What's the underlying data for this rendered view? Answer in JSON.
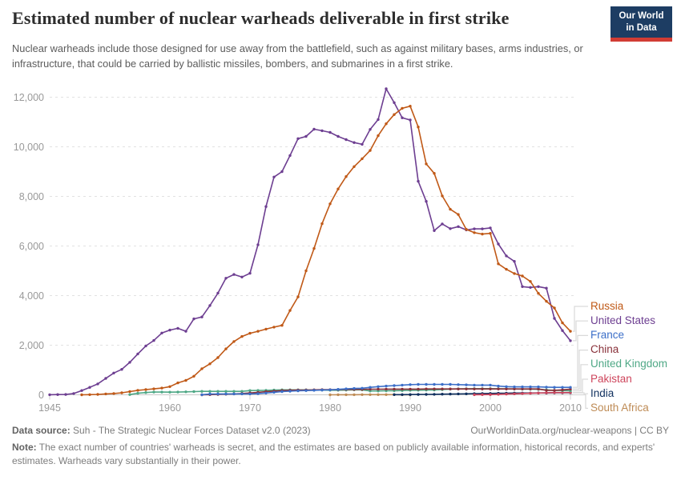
{
  "header": {
    "title": "Estimated number of nuclear warheads deliverable in first strike",
    "subtitle": "Nuclear warheads include those designed for use away from the battlefield, such as against military bases, arms industries, or infrastructure, that could be carried by ballistic missiles, bombers, and submarines in a first strike.",
    "logo_line1": "Our World",
    "logo_line2": "in Data",
    "logo_bg": "#1D3D63",
    "logo_stripe": "#D13C34"
  },
  "chart_data": {
    "type": "line",
    "title": "Estimated number of nuclear warheads deliverable in first strike",
    "xlabel": "",
    "ylabel": "",
    "x_range": [
      1945,
      2010
    ],
    "ylim": [
      0,
      12000
    ],
    "grid": "dashed-horizontal",
    "legend_position": "right",
    "xticks": [
      1945,
      1960,
      1970,
      1980,
      1990,
      2000,
      2010
    ],
    "yticks": [
      0,
      2000,
      4000,
      6000,
      8000,
      10000,
      12000
    ],
    "series": [
      {
        "name": "Russia",
        "color": "#C05917",
        "start_year": 1949,
        "values": [
          1,
          5,
          15,
          35,
          50,
          80,
          130,
          180,
          210,
          240,
          270,
          330,
          480,
          580,
          750,
          1050,
          1250,
          1500,
          1850,
          2150,
          2350,
          2480,
          2560,
          2650,
          2730,
          2800,
          3400,
          3950,
          5000,
          5900,
          6900,
          7700,
          8300,
          8800,
          9200,
          9520,
          9850,
          10450,
          10930,
          11300,
          11550,
          11640,
          10800,
          9310,
          8930,
          8020,
          7480,
          7270,
          6670,
          6540,
          6480,
          6510,
          5280,
          5060,
          4890,
          4790,
          4570,
          4090,
          3770,
          3500,
          2900,
          2560
        ]
      },
      {
        "name": "United States",
        "color": "#6D3E91",
        "start_year": 1945,
        "values": [
          2,
          9,
          13,
          50,
          170,
          299,
          438,
          660,
          878,
          1025,
          1310,
          1650,
          1970,
          2190,
          2490,
          2610,
          2680,
          2560,
          3060,
          3140,
          3600,
          4100,
          4700,
          4850,
          4750,
          4900,
          6050,
          7590,
          8780,
          9000,
          9650,
          10330,
          10420,
          10710,
          10650,
          10580,
          10420,
          10290,
          10170,
          10100,
          10700,
          11100,
          12340,
          11780,
          11170,
          11080,
          8610,
          7800,
          6620,
          6890,
          6700,
          6780,
          6650,
          6690,
          6690,
          6730,
          6080,
          5600,
          5380,
          4360,
          4330,
          4360,
          4300,
          3080,
          2590,
          2180
        ]
      },
      {
        "name": "France",
        "color": "#3C6FC8",
        "start_year": 1964,
        "values": [
          4,
          32,
          36,
          36,
          36,
          36,
          36,
          45,
          70,
          100,
          130,
          145,
          160,
          170,
          180,
          190,
          200,
          220,
          240,
          255,
          265,
          300,
          330,
          350,
          370,
          390,
          410,
          420,
          420,
          420,
          420,
          420,
          410,
          400,
          390,
          390,
          390,
          350,
          330,
          320,
          320,
          320,
          320,
          310,
          300,
          300,
          300
        ]
      },
      {
        "name": "China",
        "color": "#883039",
        "start_year": 1964,
        "values": [
          1,
          5,
          15,
          25,
          35,
          50,
          75,
          100,
          130,
          150,
          170,
          185,
          190,
          195,
          200,
          205,
          205,
          210,
          215,
          215,
          220,
          225,
          225,
          230,
          230,
          230,
          230,
          230,
          235,
          235,
          235,
          235,
          235,
          235,
          235,
          235,
          235,
          235,
          235,
          235,
          235,
          235,
          235,
          180,
          180,
          200,
          230
        ]
      },
      {
        "name": "United Kingdom",
        "color": "#4FA886",
        "start_year": 1955,
        "values": [
          10,
          60,
          90,
          110,
          110,
          105,
          110,
          120,
          130,
          140,
          140,
          140,
          140,
          140,
          140,
          170,
          175,
          180,
          190,
          200,
          200,
          200,
          200,
          195,
          190,
          185,
          185,
          190,
          200,
          200,
          155,
          155,
          160,
          165,
          170,
          180,
          185,
          190,
          195,
          210,
          230,
          240,
          245,
          250,
          250,
          250,
          245,
          240,
          235,
          230,
          225,
          220,
          200,
          180,
          170,
          160
        ]
      },
      {
        "name": "Pakistan",
        "color": "#CE455C",
        "start_year": 1998,
        "values": [
          2,
          5,
          10,
          20,
          30,
          40,
          50,
          60,
          70,
          80,
          90,
          90,
          90
        ]
      },
      {
        "name": "India",
        "color": "#10305F",
        "start_year": 1988,
        "values": [
          5,
          7,
          10,
          12,
          15,
          20,
          25,
          30,
          35,
          40,
          45,
          50,
          55,
          60,
          65,
          70,
          70,
          70,
          75,
          75,
          80,
          80,
          80
        ]
      },
      {
        "name": "South Africa",
        "color": "#BE8B55",
        "start_year": 1980,
        "values": [
          1,
          2,
          3,
          4,
          5,
          6,
          6,
          6,
          6,
          3,
          0
        ]
      }
    ]
  },
  "footer": {
    "source_label": "Data source:",
    "source_text": "Suh - The Strategic Nuclear Forces Dataset v2.0 (2023)",
    "attribution": "OurWorldinData.org/nuclear-weapons | CC BY",
    "note_label": "Note:",
    "note_text": "The exact number of countries' warheads is secret, and the estimates are based on publicly available information, historical records, and experts' estimates. Warheads vary substantially in their power."
  }
}
